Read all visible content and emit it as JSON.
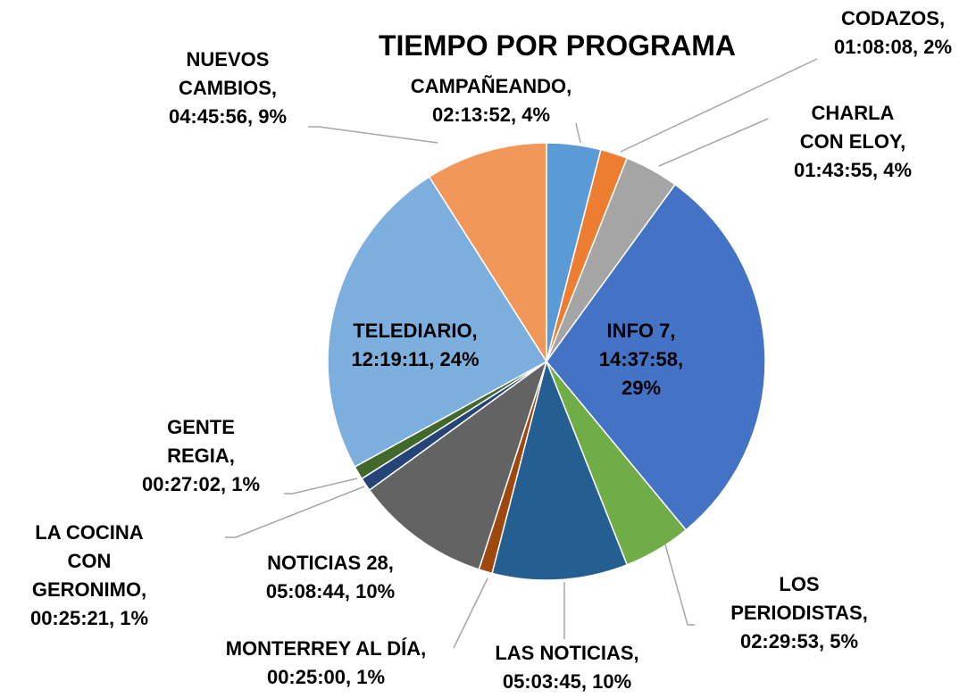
{
  "chart_data": {
    "type": "pie",
    "title": "TIEMPO POR PROGRAMA",
    "values": [
      4,
      2,
      4,
      29,
      5,
      10,
      1,
      10,
      1,
      1,
      24,
      9
    ],
    "value_labels": [
      "CAMPAÑEANDO, 02:13:52, 4%",
      "CODAZOS, 01:08:08, 2%",
      "CHARLA CON ELOY, 01:43:55, 4%",
      "INFO 7, 14:37:58, 29%",
      "LOS PERIODISTAS, 02:29:53, 5%",
      "LAS NOTICIAS, 05:03:45, 10%",
      "MONTERREY AL DÍA, 00:25:00, 1%",
      "NOTICIAS 28, 05:08:44, 10%",
      "LA COCINA CON GERONIMO, 00:25:21, 1%",
      "GENTE REGIA, 00:27:02, 1%",
      "TELEDIARIO, 12:19:11, 24%",
      "NUEVOS CAMBIOS, 04:45:56, 9%"
    ],
    "colors": [
      "#5b9bd5",
      "#ed7d31",
      "#a5a5a5",
      "#4472c4",
      "#70ad47",
      "#255e91",
      "#9e480e",
      "#636363",
      "#264478",
      "#43682b",
      "#7cafdd",
      "#f1975a"
    ]
  }
}
